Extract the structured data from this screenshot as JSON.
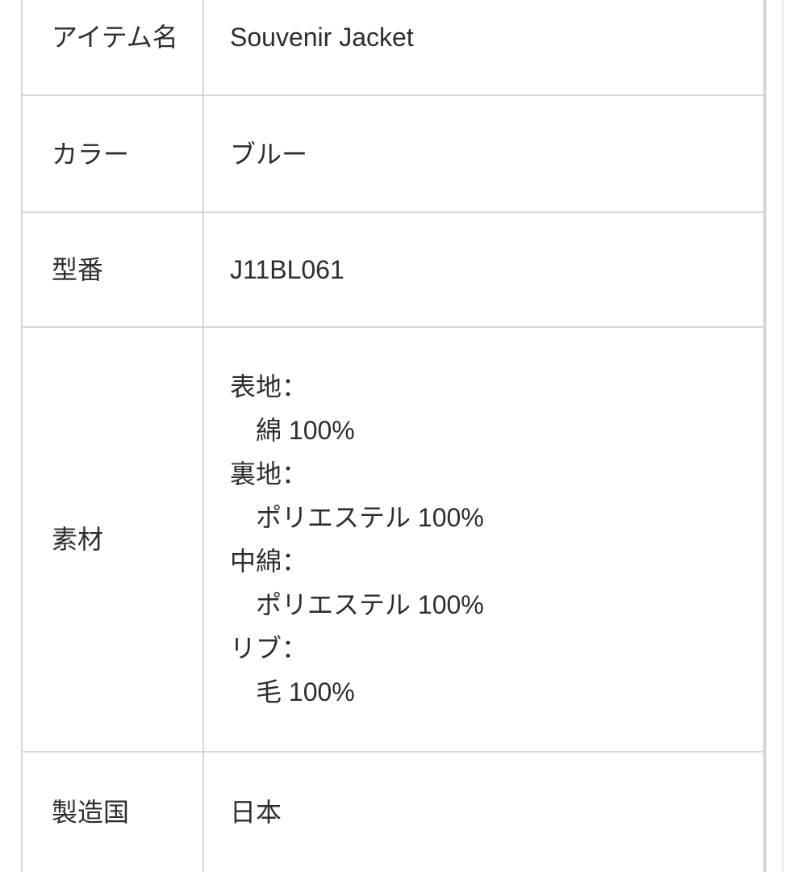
{
  "colors": {
    "background": "#ffffff",
    "table_border": "#d6d6d6",
    "text": "#2e2e2e",
    "edge_rule": "#e4e4e4"
  },
  "table": {
    "rows": [
      {
        "label": "アイテム名",
        "value": "Souvenir Jacket"
      },
      {
        "label": "カラー",
        "value": "ブルー"
      },
      {
        "label": "型番",
        "value": "J11BL061"
      },
      {
        "label": "素材",
        "lines": [
          "表地：",
          "　綿 100%",
          "裏地：",
          "　ポリエステル 100%",
          "中綿：",
          "　ポリエステル 100%",
          "リブ：",
          "　毛 100%"
        ]
      },
      {
        "label": "製造国",
        "value": "日本"
      }
    ]
  }
}
